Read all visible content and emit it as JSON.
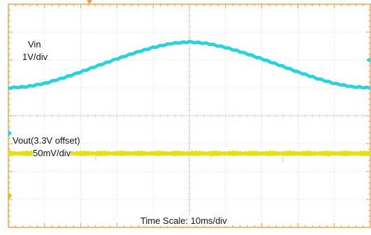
{
  "colors": {
    "frame": "#f39c34",
    "grid_major": "#cfcfcf",
    "grid_minor": "#d8d8d8",
    "vin_trace": "#29d3dd",
    "vout_trace": "#e6df12",
    "vin_marker": "#29d3dd",
    "vout_marker": "#f0b400",
    "trigger_marker": "#f39c34"
  },
  "annotations": {
    "vin_name": "Vin",
    "vin_scale": "1V/div",
    "vout_name": "Vout(3.3V offset)",
    "vout_scale": "50mV/div",
    "time_scale": "Time Scale: 10ms/div"
  },
  "chart_data": {
    "type": "line",
    "grid": true,
    "x_divisions": 10,
    "y_divisions": 8,
    "series": [
      {
        "name": "Vin",
        "scale": "1V/div",
        "x_div": [
          0,
          0.5,
          1,
          1.5,
          2,
          2.5,
          3,
          3.5,
          4,
          4.5,
          5,
          5.5,
          6,
          6.5,
          7,
          7.5,
          8,
          8.5,
          9,
          9.5,
          10
        ],
        "y_div": [
          1.0,
          1.04,
          1.16,
          1.35,
          1.57,
          1.81,
          2.04,
          2.26,
          2.45,
          2.59,
          2.65,
          2.59,
          2.45,
          2.26,
          2.04,
          1.81,
          1.57,
          1.35,
          1.16,
          1.04,
          1.0
        ]
      },
      {
        "name": "Vout(3.3V offset)",
        "scale": "50mV/div",
        "x_div": [
          0,
          5,
          10
        ],
        "y_div": [
          -1.35,
          -1.35,
          -1.35
        ]
      }
    ]
  }
}
